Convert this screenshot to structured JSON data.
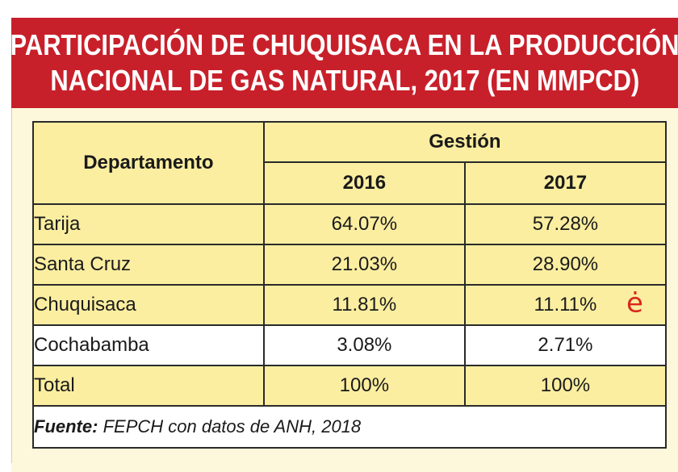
{
  "title": {
    "line1": "PARTICIPACIÓN DE CHUQUISACA EN LA PRODUCCIÓN",
    "line2": "NACIONAL DE GAS NATURAL, 2017 (EN MMPCD)"
  },
  "colors": {
    "banner": "#c8202a",
    "highlight_row": "#fbeea0",
    "background": "#fdf8dc"
  },
  "chart_data": {
    "type": "table",
    "title": "PARTICIPACIÓN DE CHUQUISACA EN LA PRODUCCIÓN NACIONAL DE GAS NATURAL, 2017 (EN MMPCD)",
    "headers": {
      "row_header": "Departamento",
      "group": "Gestión",
      "columns": [
        "2016",
        "2017"
      ]
    },
    "rows": [
      {
        "label": "Tarija",
        "values": [
          "64.07%",
          "57.28%"
        ],
        "highlight": true
      },
      {
        "label": "Santa Cruz",
        "values": [
          "21.03%",
          "28.90%"
        ],
        "highlight": true
      },
      {
        "label": "Chuquisaca",
        "values": [
          "11.81%",
          "11.11%"
        ],
        "highlight": true
      },
      {
        "label": "Cochabamba",
        "values": [
          "3.08%",
          "2.71%"
        ],
        "highlight": false
      },
      {
        "label": "Total",
        "values": [
          "100%",
          "100%"
        ],
        "highlight": true
      }
    ],
    "source_label": "Fuente:",
    "source_text": "FEPCH con datos de ANH, 2018"
  },
  "annotation_mark": "ė"
}
